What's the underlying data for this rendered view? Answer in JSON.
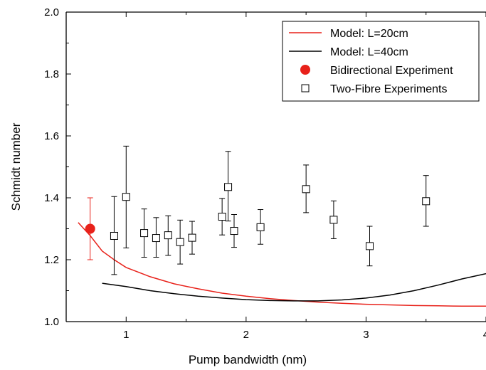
{
  "chart_data": {
    "type": "scatter",
    "xlabel": "Pump bandwidth (nm)",
    "ylabel": "Schmidt number",
    "xlim": [
      0.5,
      4.0
    ],
    "ylim": [
      1.0,
      2.0
    ],
    "x_ticks": [
      1,
      2,
      3,
      4
    ],
    "x_tick_labels": [
      "1",
      "2",
      "3",
      "4"
    ],
    "y_ticks": [
      1.0,
      1.2,
      1.4,
      1.6,
      1.8,
      2.0
    ],
    "y_tick_labels": [
      "1.0",
      "1.2",
      "1.4",
      "1.6",
      "1.8",
      "2.0"
    ],
    "grid": false,
    "legend_position": "top-right",
    "series": [
      {
        "name": "Model: L=20cm",
        "kind": "line",
        "color": "#e8211a",
        "x": [
          0.6,
          0.7,
          0.8,
          0.9,
          1.0,
          1.2,
          1.4,
          1.6,
          1.8,
          2.0,
          2.2,
          2.4,
          2.6,
          2.8,
          3.0,
          3.2,
          3.4,
          3.6,
          3.8,
          4.0
        ],
        "y": [
          1.32,
          1.278,
          1.228,
          1.2,
          1.175,
          1.145,
          1.122,
          1.106,
          1.092,
          1.082,
          1.074,
          1.068,
          1.063,
          1.059,
          1.056,
          1.054,
          1.052,
          1.051,
          1.05,
          1.05
        ]
      },
      {
        "name": "Model: L=40cm",
        "kind": "line",
        "color": "#000000",
        "x": [
          0.8,
          1.0,
          1.2,
          1.4,
          1.6,
          1.8,
          2.0,
          2.2,
          2.4,
          2.6,
          2.8,
          3.0,
          3.2,
          3.4,
          3.6,
          3.8,
          4.0
        ],
        "y": [
          1.124,
          1.113,
          1.1,
          1.09,
          1.082,
          1.076,
          1.071,
          1.068,
          1.067,
          1.067,
          1.07,
          1.076,
          1.086,
          1.1,
          1.118,
          1.138,
          1.155
        ]
      },
      {
        "name": "Bidirectional Experiment",
        "kind": "points",
        "marker": "filled-circle",
        "color": "#e8211a",
        "x": [
          0.7
        ],
        "y": [
          1.3
        ],
        "err_low": [
          1.2
        ],
        "err_high": [
          1.4
        ]
      },
      {
        "name": "Two-Fibre Experiments",
        "kind": "points",
        "marker": "open-square",
        "color": "#000000",
        "x": [
          0.9,
          1.0,
          1.15,
          1.25,
          1.35,
          1.45,
          1.55,
          1.8,
          1.85,
          1.9,
          2.12,
          2.5,
          2.73,
          3.03,
          3.5
        ],
        "y": [
          1.277,
          1.403,
          1.286,
          1.27,
          1.279,
          1.257,
          1.271,
          1.339,
          1.435,
          1.293,
          1.305,
          1.428,
          1.329,
          1.244,
          1.389
        ],
        "err_low": [
          1.152,
          1.238,
          1.208,
          1.208,
          1.214,
          1.186,
          1.218,
          1.28,
          1.325,
          1.24,
          1.25,
          1.352,
          1.268,
          1.18,
          1.308
        ],
        "err_high": [
          1.404,
          1.567,
          1.364,
          1.336,
          1.342,
          1.328,
          1.324,
          1.398,
          1.55,
          1.346,
          1.362,
          1.506,
          1.39,
          1.308,
          1.472
        ]
      }
    ]
  }
}
